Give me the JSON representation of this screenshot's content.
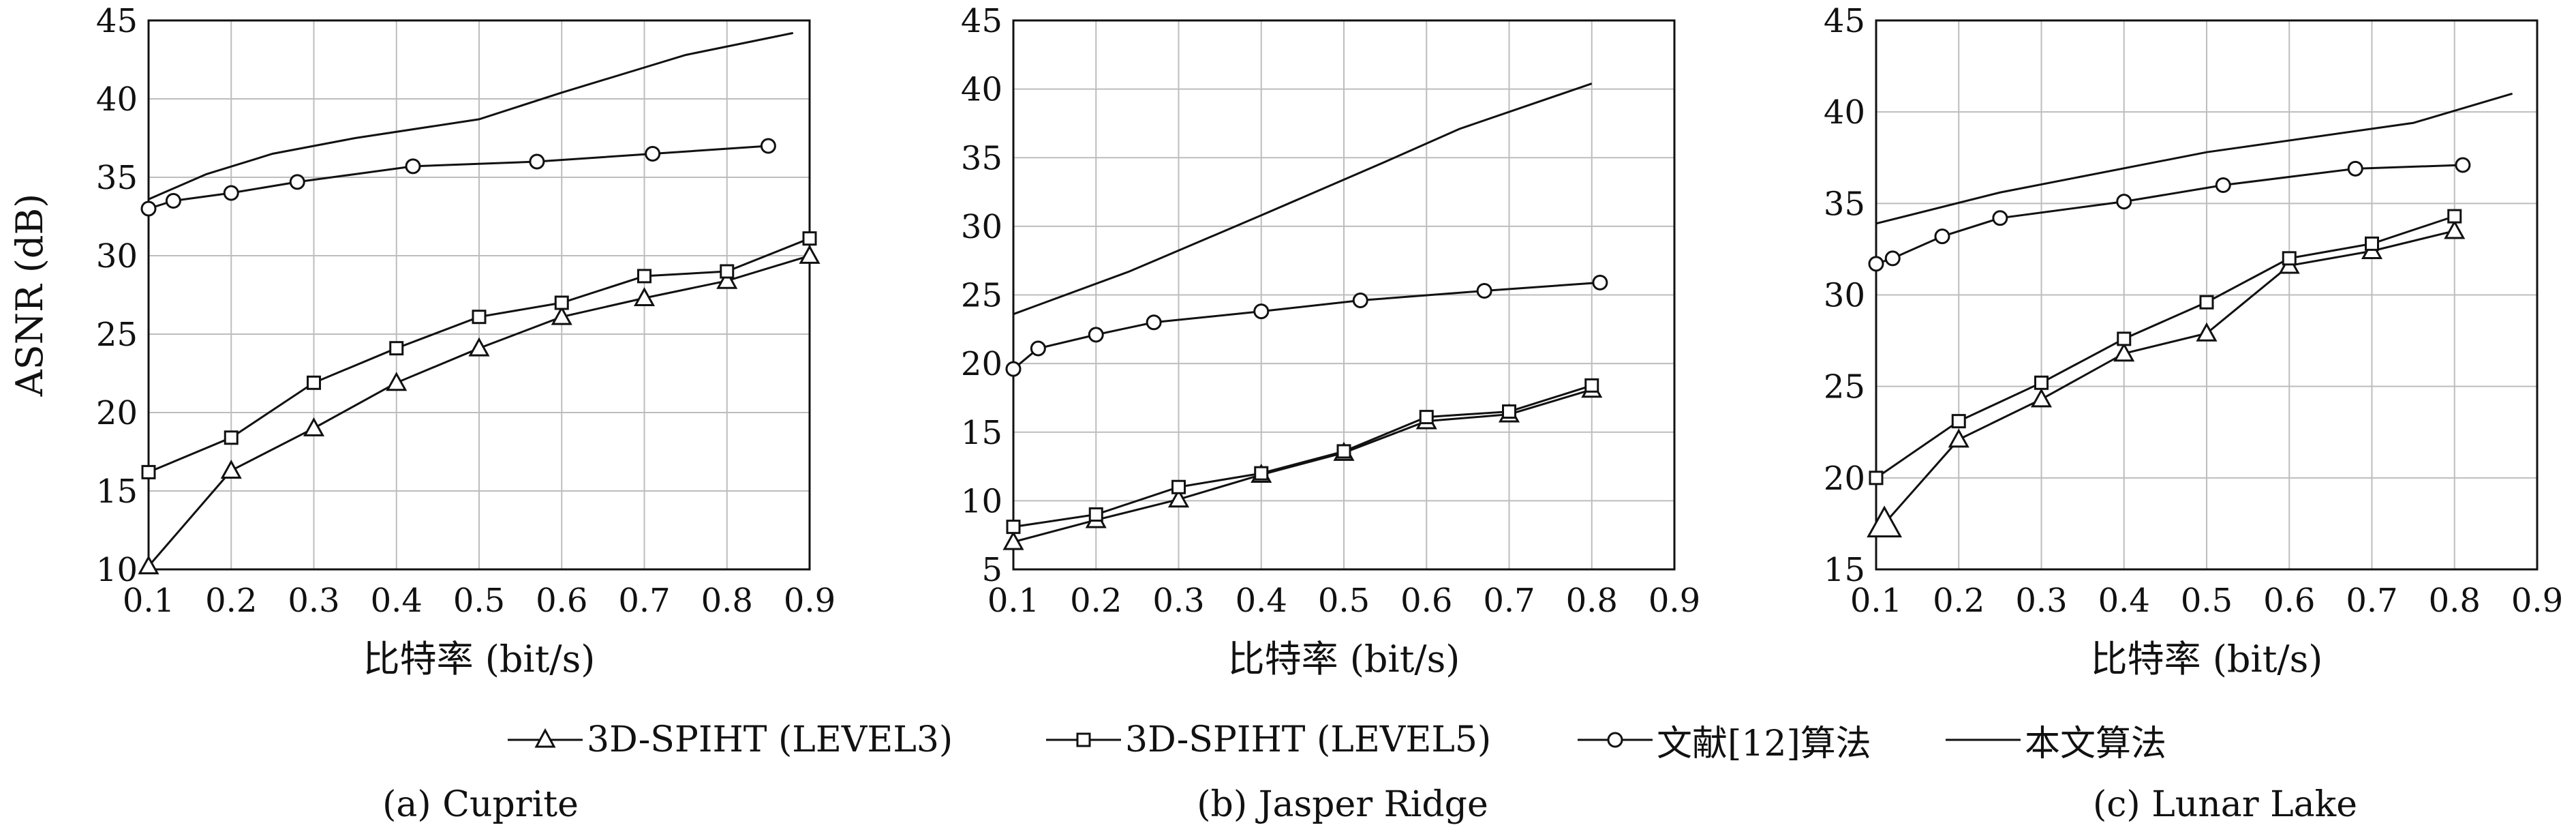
{
  "legend": {
    "items": [
      {
        "label": "3D-SPIHT (LEVEL3)",
        "marker": "triangle"
      },
      {
        "label": "3D-SPIHT (LEVEL5)",
        "marker": "square"
      },
      {
        "label": "文献[12]算法",
        "marker": "circle"
      },
      {
        "label": "本文算法",
        "marker": "none"
      }
    ]
  },
  "chart_data": [
    {
      "type": "line",
      "caption": "(a) Cuprite",
      "xlabel": "比特率 (bit/s)",
      "ylabel": "ASNR (dB)",
      "xlim": [
        0.1,
        0.9
      ],
      "ylim": [
        10,
        45
      ],
      "xticks": [
        "0.1",
        "0.2",
        "0.3",
        "0.4",
        "0.5",
        "0.6",
        "0.7",
        "0.8",
        "0.9"
      ],
      "yticks": [
        "10",
        "15",
        "20",
        "25",
        "30",
        "35",
        "40",
        "45"
      ],
      "grid": true,
      "series": [
        {
          "name": "3D-SPIHT (LEVEL3)",
          "marker": "triangle",
          "x": [
            0.1,
            0.2,
            0.3,
            0.4,
            0.5,
            0.6,
            0.7,
            0.8,
            0.9
          ],
          "y": [
            10.2,
            16.3,
            19.0,
            21.9,
            24.1,
            26.1,
            27.3,
            28.4,
            30.0
          ]
        },
        {
          "name": "3D-SPIHT (LEVEL5)",
          "marker": "square",
          "x": [
            0.1,
            0.2,
            0.3,
            0.4,
            0.5,
            0.6,
            0.7,
            0.8,
            0.9
          ],
          "y": [
            16.2,
            18.4,
            21.9,
            24.1,
            26.1,
            27.0,
            28.7,
            29.0,
            31.1
          ]
        },
        {
          "name": "文献[12]算法",
          "marker": "circle",
          "x": [
            0.1,
            0.13,
            0.2,
            0.28,
            0.42,
            0.57,
            0.71,
            0.85
          ],
          "y": [
            33.0,
            33.5,
            34.0,
            34.7,
            35.7,
            36.0,
            36.5,
            37.0
          ]
        },
        {
          "name": "本文算法",
          "marker": "none",
          "x": [
            0.1,
            0.17,
            0.25,
            0.35,
            0.5,
            0.6,
            0.7,
            0.75,
            0.88
          ],
          "y": [
            33.6,
            35.2,
            36.5,
            37.5,
            38.7,
            40.4,
            42.0,
            42.8,
            44.2
          ]
        }
      ]
    },
    {
      "type": "line",
      "caption": "(b) Jasper Ridge",
      "xlabel": "比特率 (bit/s)",
      "ylabel": "",
      "xlim": [
        0.1,
        0.9
      ],
      "ylim": [
        5,
        45
      ],
      "xticks": [
        "0.1",
        "0.2",
        "0.3",
        "0.4",
        "0.5",
        "0.6",
        "0.7",
        "0.8",
        "0.9"
      ],
      "yticks": [
        "5",
        "10",
        "15",
        "20",
        "25",
        "30",
        "35",
        "40",
        "45"
      ],
      "grid": true,
      "series": [
        {
          "name": "3D-SPIHT (LEVEL3)",
          "marker": "triangle",
          "x": [
            0.1,
            0.2,
            0.3,
            0.4,
            0.5,
            0.6,
            0.7,
            0.8
          ],
          "y": [
            7.0,
            8.6,
            10.1,
            11.9,
            13.5,
            15.8,
            16.3,
            18.1
          ]
        },
        {
          "name": "3D-SPIHT (LEVEL5)",
          "marker": "square",
          "x": [
            0.1,
            0.2,
            0.3,
            0.4,
            0.5,
            0.6,
            0.7,
            0.8
          ],
          "y": [
            8.1,
            9.0,
            11.0,
            12.0,
            13.6,
            16.1,
            16.5,
            18.4
          ]
        },
        {
          "name": "文献[12]算法",
          "marker": "circle",
          "x": [
            0.1,
            0.13,
            0.2,
            0.27,
            0.4,
            0.52,
            0.67,
            0.81
          ],
          "y": [
            19.6,
            21.1,
            22.1,
            23.0,
            23.8,
            24.6,
            25.3,
            25.9
          ]
        },
        {
          "name": "本文算法",
          "marker": "none",
          "x": [
            0.1,
            0.24,
            0.4,
            0.55,
            0.64,
            0.8
          ],
          "y": [
            23.6,
            26.7,
            30.8,
            34.7,
            37.1,
            40.4
          ]
        }
      ]
    },
    {
      "type": "line",
      "caption": "(c) Lunar Lake",
      "xlabel": "比特率 (bit/s)",
      "ylabel": "",
      "xlim": [
        0.1,
        0.9
      ],
      "ylim": [
        15,
        45
      ],
      "xticks": [
        "0.1",
        "0.2",
        "0.3",
        "0.4",
        "0.5",
        "0.6",
        "0.7",
        "0.8",
        "0.9"
      ],
      "yticks": [
        "15",
        "20",
        "25",
        "30",
        "35",
        "40",
        "45"
      ],
      "grid": true,
      "series": [
        {
          "name": "3D-SPIHT (LEVEL3)",
          "marker": "triangle",
          "x": [
            0.11,
            0.2,
            0.3,
            0.4,
            0.5,
            0.6,
            0.7,
            0.8
          ],
          "y": [
            17.5,
            22.1,
            24.3,
            26.8,
            27.9,
            31.6,
            32.4,
            33.5
          ]
        },
        {
          "name": "3D-SPIHT (LEVEL5)",
          "marker": "square",
          "x": [
            0.1,
            0.2,
            0.3,
            0.4,
            0.5,
            0.6,
            0.7,
            0.8
          ],
          "y": [
            20.0,
            23.1,
            25.2,
            27.6,
            29.6,
            32.0,
            32.8,
            34.3
          ]
        },
        {
          "name": "文献[12]算法",
          "marker": "circle",
          "x": [
            0.1,
            0.12,
            0.18,
            0.25,
            0.4,
            0.52,
            0.68,
            0.81
          ],
          "y": [
            31.7,
            32.0,
            33.2,
            34.2,
            35.1,
            36.0,
            36.9,
            37.1
          ]
        },
        {
          "name": "本文算法",
          "marker": "none",
          "x": [
            0.1,
            0.25,
            0.5,
            0.75,
            0.87
          ],
          "y": [
            33.9,
            35.6,
            37.8,
            39.4,
            41.0
          ]
        }
      ]
    }
  ]
}
